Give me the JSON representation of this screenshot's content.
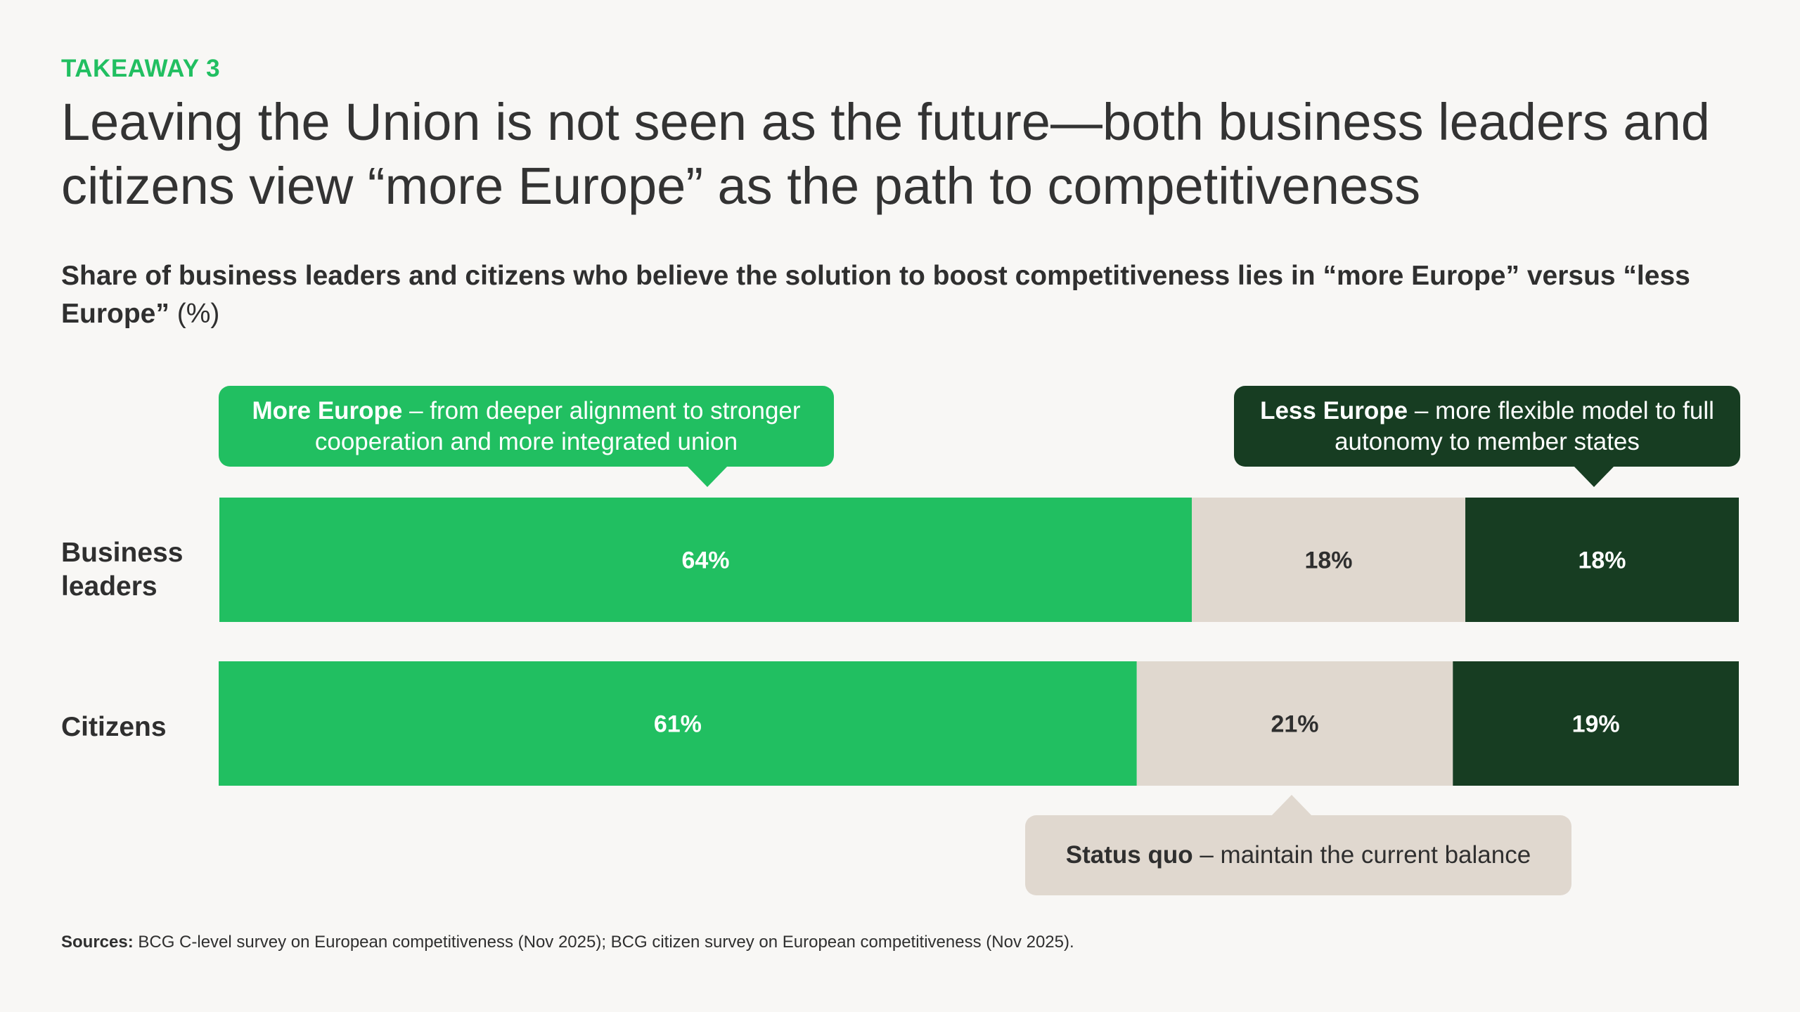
{
  "kicker": "TAKEAWAY 3",
  "headline": "Leaving the Union is not seen as the future—both business leaders and citizens view “more Europe” as the path to competitiveness",
  "subtitle": {
    "text": "Share of business leaders and citizens who believe the solution to boost competitiveness lies in “more Europe” versus “less Europe”",
    "unit": "(%)"
  },
  "callouts": {
    "more": {
      "bold": "More Europe",
      "rest": " – from deeper alignment to stronger cooperation and more integrated union"
    },
    "less": {
      "bold": "Less Europe",
      "rest": " – more flexible model to full autonomy to member states"
    },
    "status": {
      "bold": "Status quo",
      "rest": " – maintain the current balance"
    }
  },
  "colors": {
    "more": "#21bf61",
    "status": "#e0d8cf",
    "less": "#173d22",
    "label_light": "#ffffff",
    "label_dark": "#2f2f2f"
  },
  "chart_data": {
    "type": "bar",
    "orientation": "horizontal",
    "stacked": true,
    "categories": [
      "Business leaders",
      "Citizens"
    ],
    "series": [
      {
        "name": "More Europe",
        "values": [
          64,
          61
        ]
      },
      {
        "name": "Status quo",
        "values": [
          18,
          21
        ]
      },
      {
        "name": "Less Europe",
        "values": [
          18,
          19
        ]
      }
    ],
    "data_labels": [
      [
        "64%",
        "18%",
        "18%"
      ],
      [
        "61%",
        "21%",
        "19%"
      ]
    ],
    "xlim": [
      0,
      100
    ],
    "grid": false
  },
  "sources": {
    "label": "Sources:",
    "text": " BCG C-level survey on European competitiveness (Nov 2025); BCG citizen survey on European competitiveness (Nov 2025)."
  }
}
